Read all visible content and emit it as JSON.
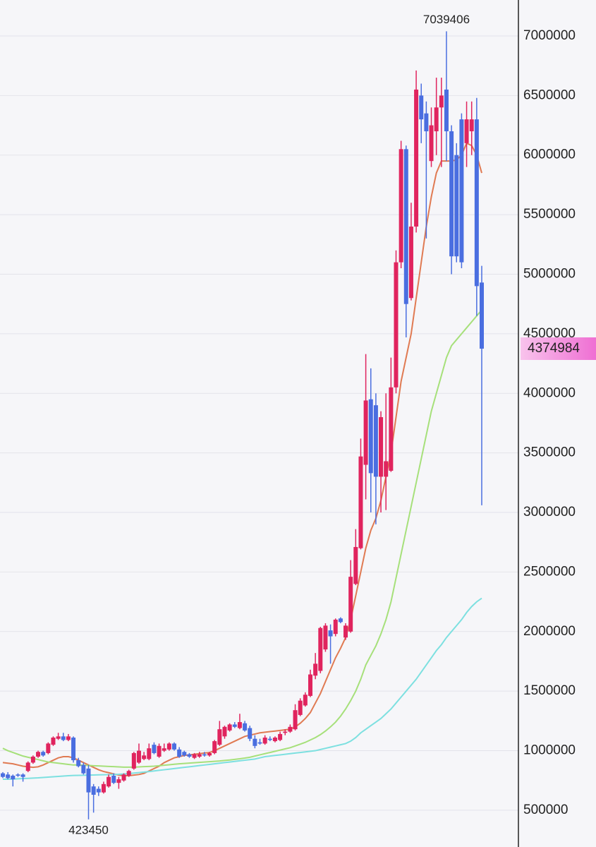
{
  "chart_data": {
    "type": "candlestick",
    "ylim": [
      191500,
      7302000
    ],
    "yticks": [
      500000,
      1000000,
      1500000,
      2000000,
      2500000,
      3000000,
      3500000,
      4000000,
      4500000,
      5000000,
      5500000,
      6000000,
      6500000,
      7000000
    ],
    "grid": true,
    "up_color": "#e0245e",
    "down_color": "#4a6ee0",
    "open": [
      810000,
      800000,
      790000,
      800000,
      800000,
      830000,
      900000,
      950000,
      990000,
      980000,
      1050000,
      1100000,
      1120000,
      1090000,
      1110000,
      920000,
      880000,
      850000,
      700000,
      680000,
      650000,
      700000,
      790000,
      730000,
      750000,
      790000,
      850000,
      900000,
      930000,
      930000,
      1050000,
      950000,
      1000000,
      1010000,
      1060000,
      1010000,
      990000,
      970000,
      940000,
      950000,
      970000,
      960000,
      980000,
      1050000,
      1120000,
      1170000,
      1220000,
      1190000,
      1230000,
      1190000,
      1100000,
      1070000,
      1060000,
      1100000,
      1080000,
      1090000,
      1150000,
      1160000,
      1180000,
      1300000,
      1380000,
      1460000,
      1630000,
      1670000,
      1850000,
      2010000,
      1980000,
      2110000,
      1950000,
      2000000,
      2400000,
      2700000,
      3400000,
      3950000,
      3900000,
      3300000,
      3300000,
      3350000,
      4050000,
      5100000,
      6050000,
      4800000,
      5400000,
      6500000,
      6350000,
      5950000,
      6200000,
      6400000,
      6550000,
      6200000,
      6000000,
      6300000,
      6100000,
      6200000,
      6300000,
      4930000
    ],
    "high": [
      820000,
      820000,
      800000,
      810000,
      810000,
      910000,
      960000,
      1000000,
      1000000,
      1070000,
      1120000,
      1150000,
      1150000,
      1140000,
      1120000,
      940000,
      900000,
      880000,
      720000,
      700000,
      740000,
      800000,
      810000,
      780000,
      810000,
      840000,
      990000,
      1060000,
      990000,
      1060000,
      1070000,
      1060000,
      1060000,
      1070000,
      1070000,
      1030000,
      1000000,
      980000,
      980000,
      990000,
      990000,
      990000,
      1090000,
      1250000,
      1210000,
      1230000,
      1240000,
      1310000,
      1250000,
      1210000,
      1130000,
      1100000,
      1130000,
      1120000,
      1120000,
      1160000,
      1180000,
      1220000,
      1390000,
      1440000,
      1490000,
      1680000,
      1820000,
      2040000,
      2070000,
      2060000,
      2110000,
      2120000,
      2070000,
      2600000,
      2860000,
      3620000,
      4330000,
      4210000,
      4000000,
      3850000,
      4000000,
      4300000,
      5200000,
      6120000,
      6080000,
      5600000,
      6710000,
      6600000,
      6450000,
      6400000,
      6650000,
      6650000,
      7039406,
      6250000,
      6100000,
      6350000,
      6450000,
      6450000,
      6480000,
      5070000
    ],
    "low": [
      770000,
      760000,
      700000,
      780000,
      740000,
      820000,
      890000,
      940000,
      950000,
      970000,
      1040000,
      1090000,
      1080000,
      1080000,
      900000,
      860000,
      800000,
      423450,
      480000,
      620000,
      640000,
      690000,
      720000,
      680000,
      740000,
      780000,
      840000,
      890000,
      920000,
      920000,
      970000,
      940000,
      990000,
      1000000,
      1000000,
      940000,
      950000,
      940000,
      930000,
      940000,
      950000,
      950000,
      970000,
      1040000,
      1100000,
      1160000,
      1190000,
      1180000,
      1160000,
      1080000,
      1020000,
      1050000,
      1050000,
      1080000,
      1070000,
      1080000,
      1130000,
      1150000,
      1170000,
      1290000,
      1370000,
      1450000,
      1600000,
      1650000,
      1830000,
      1730000,
      1960000,
      2070000,
      1930000,
      1990000,
      2390000,
      2690000,
      3110000,
      3000000,
      2900000,
      3000000,
      3020000,
      3340000,
      4000000,
      5050000,
      4470000,
      4780000,
      5350000,
      6100000,
      5300000,
      5900000,
      6000000,
      5900000,
      5950000,
      5000000,
      5100000,
      5050000,
      5900000,
      6000000,
      4650000,
      3060000
    ],
    "close": [
      780000,
      770000,
      760000,
      790000,
      780000,
      900000,
      950000,
      990000,
      960000,
      1060000,
      1110000,
      1120000,
      1090000,
      1120000,
      920000,
      870000,
      810000,
      650000,
      630000,
      650000,
      720000,
      780000,
      730000,
      760000,
      800000,
      830000,
      980000,
      1000000,
      960000,
      1020000,
      980000,
      1040000,
      1020000,
      1060000,
      1010000,
      950000,
      960000,
      950000,
      970000,
      970000,
      960000,
      980000,
      1080000,
      1180000,
      1200000,
      1220000,
      1200000,
      1240000,
      1170000,
      1100000,
      1040000,
      1060000,
      1110000,
      1090000,
      1110000,
      1140000,
      1160000,
      1200000,
      1340000,
      1420000,
      1470000,
      1640000,
      1730000,
      2030000,
      2050000,
      1960000,
      2100000,
      2080000,
      2050000,
      2460000,
      2710000,
      3470000,
      3940000,
      3330000,
      3300000,
      3800000,
      3430000,
      4050000,
      5100000,
      6050000,
      4750000,
      5400000,
      6550000,
      6300000,
      6200000,
      6250000,
      6400000,
      6500000,
      6200000,
      5150000,
      5150000,
      5100000,
      6300000,
      6300000,
      4900000,
      4374984
    ],
    "series": [
      {
        "color": "#e07a52",
        "values": [
          900000,
          895000,
          890000,
          880000,
          870000,
          865000,
          860000,
          865000,
          880000,
          900000,
          920000,
          940000,
          950000,
          950000,
          940000,
          920000,
          900000,
          880000,
          860000,
          840000,
          825000,
          815000,
          805000,
          795000,
          790000,
          790000,
          795000,
          800000,
          810000,
          830000,
          850000,
          870000,
          900000,
          920000,
          940000,
          950000,
          960000,
          965000,
          970000,
          975000,
          980000,
          985000,
          1000000,
          1020000,
          1040000,
          1060000,
          1080000,
          1100000,
          1120000,
          1130000,
          1140000,
          1150000,
          1155000,
          1160000,
          1165000,
          1170000,
          1175000,
          1180000,
          1200000,
          1230000,
          1270000,
          1320000,
          1400000,
          1480000,
          1580000,
          1680000,
          1780000,
          1860000,
          1950000,
          2100000,
          2300000,
          2500000,
          2700000,
          2850000,
          2950000,
          3100000,
          3300000,
          3500000,
          3800000,
          4100000,
          4300000,
          4500000,
          4800000,
          5100000,
          5400000,
          5650000,
          5850000,
          5950000,
          5950000,
          5950000,
          5960000,
          6000000,
          6100000,
          6080000,
          6000000,
          5850000
        ]
      },
      {
        "color": "#a6e07a",
        "values": [
          1020000,
          1000000,
          985000,
          970000,
          955000,
          945000,
          935000,
          925000,
          915000,
          905000,
          900000,
          895000,
          890000,
          885000,
          880000,
          880000,
          878000,
          876000,
          874000,
          872000,
          870000,
          868000,
          866000,
          864000,
          862000,
          862000,
          862000,
          864000,
          866000,
          868000,
          870000,
          874000,
          878000,
          882000,
          886000,
          890000,
          893000,
          896000,
          899000,
          902000,
          905000,
          908000,
          911000,
          914000,
          918000,
          922000,
          927000,
          932000,
          938000,
          945000,
          955000,
          965000,
          975000,
          985000,
          995000,
          1005000,
          1015000,
          1025000,
          1040000,
          1055000,
          1070000,
          1090000,
          1110000,
          1135000,
          1165000,
          1200000,
          1240000,
          1290000,
          1350000,
          1420000,
          1500000,
          1600000,
          1720000,
          1800000,
          1880000,
          1980000,
          2100000,
          2250000,
          2450000,
          2650000,
          2850000,
          3050000,
          3250000,
          3450000,
          3650000,
          3850000,
          4000000,
          4150000,
          4300000,
          4400000,
          4450000,
          4500000,
          4550000,
          4600000,
          4650000,
          4700000
        ]
      },
      {
        "color": "#7de0e0",
        "values": [
          760000,
          760000,
          762000,
          764000,
          766000,
          768000,
          770000,
          772000,
          775000,
          778000,
          781000,
          784000,
          787000,
          790000,
          792000,
          793000,
          794000,
          795000,
          796000,
          797000,
          798000,
          799000,
          800000,
          802000,
          805000,
          808000,
          812000,
          816000,
          820000,
          825000,
          830000,
          835000,
          840000,
          845000,
          850000,
          855000,
          860000,
          865000,
          870000,
          875000,
          880000,
          885000,
          890000,
          895000,
          900000,
          905000,
          910000,
          915000,
          920000,
          925000,
          930000,
          940000,
          950000,
          955000,
          960000,
          965000,
          970000,
          975000,
          980000,
          985000,
          990000,
          995000,
          1000000,
          1010000,
          1020000,
          1030000,
          1040000,
          1050000,
          1060000,
          1080000,
          1110000,
          1150000,
          1180000,
          1210000,
          1240000,
          1270000,
          1310000,
          1350000,
          1400000,
          1450000,
          1500000,
          1550000,
          1600000,
          1660000,
          1720000,
          1780000,
          1840000,
          1890000,
          1950000,
          2000000,
          2050000,
          2100000,
          2160000,
          2210000,
          2250000,
          2280000
        ]
      }
    ]
  }
}
